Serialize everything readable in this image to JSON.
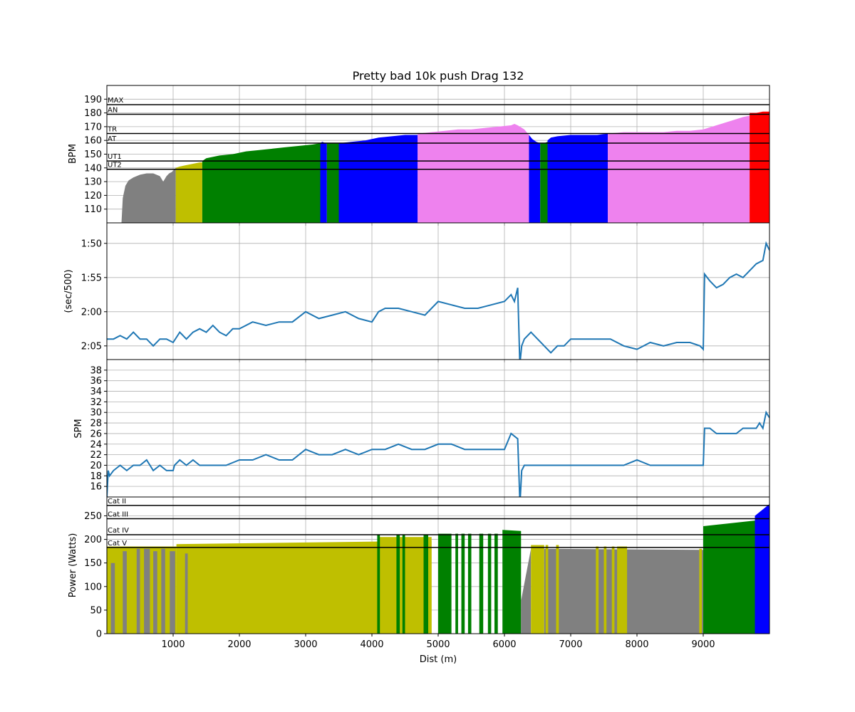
{
  "chart_data": [
    {
      "type": "area",
      "title": "Pretty bad 10k push Drag 132",
      "xlabel": "",
      "ylabel": "BPM",
      "xlim": [
        0,
        10000
      ],
      "ylim": [
        100,
        200
      ],
      "yticks": [
        110,
        120,
        130,
        140,
        150,
        160,
        170,
        180,
        190
      ],
      "grid": true,
      "zone_lines": [
        {
          "label": "MAX",
          "value": 186
        },
        {
          "label": "AN",
          "value": 179
        },
        {
          "label": "TR",
          "value": 165
        },
        {
          "label": "AT",
          "value": 158
        },
        {
          "label": "UT1",
          "value": 145
        },
        {
          "label": "UT2",
          "value": 139
        }
      ],
      "series": [
        {
          "color": "#808080",
          "x": [
            220,
            240,
            280,
            330,
            400,
            500,
            600,
            700,
            800,
            850,
            900,
            940,
            980,
            1020,
            1040
          ],
          "y": [
            100,
            118,
            127,
            131,
            133,
            135,
            136,
            136,
            134,
            130,
            134,
            136,
            137,
            139,
            140
          ]
        },
        {
          "color": "#bfbf00",
          "x": [
            1040,
            1100,
            1200,
            1300,
            1400,
            1440
          ],
          "y": [
            140,
            141,
            142,
            143,
            144,
            144
          ]
        },
        {
          "color": "#008000",
          "x": [
            1440,
            1500,
            1700,
            1900,
            2100,
            2300,
            2500,
            2700,
            2900,
            3100,
            3220
          ],
          "y": [
            145,
            147,
            149,
            150,
            152,
            153,
            154,
            155,
            156,
            157,
            158
          ]
        },
        {
          "color": "#0000ff",
          "x": [
            3220,
            3250,
            3300,
            3320
          ],
          "y": [
            158,
            159,
            158,
            158
          ]
        },
        {
          "color": "#008000",
          "x": [
            3320,
            3400,
            3500
          ],
          "y": [
            158,
            158,
            158
          ]
        },
        {
          "color": "#0000ff",
          "x": [
            3500,
            3700,
            3900,
            4100,
            4300,
            4500,
            4690
          ],
          "y": [
            158,
            159,
            160,
            162,
            163,
            164,
            164
          ]
        },
        {
          "color": "#ee82ee",
          "x": [
            4690,
            4900,
            5100,
            5300,
            5500,
            5700,
            5900,
            6100,
            6150,
            6200,
            6300,
            6370
          ],
          "y": [
            165,
            166,
            167,
            168,
            168,
            169,
            170,
            171,
            172,
            171,
            168,
            164
          ]
        },
        {
          "color": "#0000ff",
          "x": [
            6370,
            6420,
            6480,
            6540
          ],
          "y": [
            164,
            161,
            159,
            158
          ]
        },
        {
          "color": "#008000",
          "x": [
            6540,
            6600,
            6650
          ],
          "y": [
            158,
            158,
            159
          ]
        },
        {
          "color": "#0000ff",
          "x": [
            6650,
            6700,
            6800,
            7000,
            7200,
            7400,
            7560
          ],
          "y": [
            160,
            162,
            163,
            164,
            164,
            164,
            165
          ]
        },
        {
          "color": "#ee82ee",
          "x": [
            7560,
            7800,
            8000,
            8200,
            8400,
            8600,
            8800,
            9000,
            9200,
            9400,
            9600,
            9700
          ],
          "y": [
            165,
            166,
            166,
            166,
            166,
            167,
            167,
            168,
            171,
            174,
            177,
            178
          ]
        },
        {
          "color": "#ff0000",
          "x": [
            9700,
            9800,
            9900,
            10000
          ],
          "y": [
            180,
            180,
            181,
            181
          ]
        }
      ]
    },
    {
      "type": "line",
      "ylabel": "(sec/500)",
      "xlim": [
        0,
        10000
      ],
      "ylim": [
        127.0,
        107.0
      ],
      "yticks": [
        110,
        115,
        120,
        125
      ],
      "ytick_labels": [
        "1:50",
        "1:55",
        "2:00",
        "2:05"
      ],
      "grid": true,
      "series": [
        {
          "color": "#1f77b4",
          "x": [
            0,
            100,
            200,
            300,
            400,
            500,
            600,
            700,
            800,
            900,
            1000,
            1100,
            1200,
            1300,
            1400,
            1500,
            1600,
            1700,
            1800,
            1900,
            2000,
            2200,
            2400,
            2600,
            2800,
            3000,
            3200,
            3400,
            3600,
            3800,
            4000,
            4100,
            4200,
            4400,
            4600,
            4800,
            5000,
            5200,
            5400,
            5600,
            5800,
            6000,
            6100,
            6150,
            6200,
            6230,
            6240,
            6260,
            6300,
            6400,
            6500,
            6600,
            6700,
            6800,
            6900,
            7000,
            7200,
            7400,
            7600,
            7800,
            8000,
            8200,
            8400,
            8600,
            8800,
            8950,
            9000,
            9020,
            9100,
            9200,
            9300,
            9400,
            9500,
            9600,
            9700,
            9800,
            9900,
            9950,
            10000
          ],
          "y": [
            124,
            124,
            123.5,
            124,
            123,
            124,
            124,
            125,
            124,
            124,
            124.5,
            123,
            124,
            123,
            122.5,
            123,
            122,
            123,
            123.5,
            122.5,
            122.5,
            121.5,
            122,
            121.5,
            121.5,
            120,
            121,
            120.5,
            120,
            121,
            121.5,
            120,
            119.5,
            119.5,
            120,
            120.5,
            118.5,
            119,
            119.5,
            119.5,
            119,
            118.5,
            117.5,
            118.5,
            116.5,
            127,
            127,
            125,
            124,
            123,
            124,
            125,
            126,
            125,
            125,
            124,
            124,
            124,
            124,
            125,
            125.5,
            124.5,
            125,
            124.5,
            124.5,
            125,
            125.5,
            114.5,
            115.5,
            116.5,
            116,
            115,
            114.5,
            115,
            114,
            113,
            112.5,
            110,
            111
          ]
        }
      ]
    },
    {
      "type": "line",
      "xlabel": "",
      "ylabel": "SPM",
      "xlim": [
        0,
        10000
      ],
      "ylim": [
        14,
        40
      ],
      "yticks": [
        16,
        18,
        20,
        22,
        24,
        26,
        28,
        30,
        32,
        34,
        36,
        38
      ],
      "grid": true,
      "series": [
        {
          "color": "#1f77b4",
          "x": [
            0,
            20,
            40,
            100,
            200,
            300,
            400,
            500,
            600,
            700,
            800,
            900,
            1000,
            1020,
            1100,
            1200,
            1300,
            1400,
            1600,
            1800,
            2000,
            2200,
            2400,
            2600,
            2800,
            3000,
            3200,
            3400,
            3600,
            3800,
            4000,
            4200,
            4400,
            4600,
            4800,
            5000,
            5200,
            5400,
            5600,
            5800,
            6000,
            6100,
            6200,
            6230,
            6240,
            6260,
            6300,
            6500,
            6800,
            7000,
            7200,
            7400,
            7600,
            7800,
            8000,
            8200,
            8400,
            8600,
            8800,
            9000,
            9020,
            9100,
            9200,
            9300,
            9400,
            9500,
            9600,
            9700,
            9800,
            9850,
            9900,
            9950,
            10000
          ],
          "y": [
            14,
            19,
            18,
            19,
            20,
            19,
            20,
            20,
            21,
            19,
            20,
            19,
            19,
            20,
            21,
            20,
            21,
            20,
            20,
            20,
            21,
            21,
            22,
            21,
            21,
            23,
            22,
            22,
            23,
            22,
            23,
            23,
            24,
            23,
            23,
            24,
            24,
            23,
            23,
            23,
            23,
            26,
            25,
            14,
            14,
            19,
            20,
            20,
            20,
            20,
            20,
            20,
            20,
            20,
            21,
            20,
            20,
            20,
            20,
            20,
            27,
            27,
            26,
            26,
            26,
            26,
            27,
            27,
            27,
            28,
            27,
            30,
            29
          ]
        }
      ]
    },
    {
      "type": "bar",
      "xlabel": "Dist (m)",
      "ylabel": "Power (Watts)",
      "xlim": [
        0,
        10000
      ],
      "ylim": [
        0,
        290
      ],
      "yticks": [
        0,
        50,
        100,
        150,
        200,
        250
      ],
      "xticks": [
        1000,
        2000,
        3000,
        4000,
        5000,
        6000,
        7000,
        8000,
        9000
      ],
      "grid": true,
      "zone_lines": [
        {
          "label": "Cat II",
          "value": 272
        },
        {
          "label": "Cat III",
          "value": 244
        },
        {
          "label": "Cat IV",
          "value": 210
        },
        {
          "label": "Cat V",
          "value": 183
        }
      ],
      "series": [
        {
          "color": "#bfbf00",
          "x": [
            0,
            1050
          ],
          "y": [
            185,
            185
          ]
        },
        {
          "color": "#808080",
          "x": [
            60,
            120
          ],
          "y": [
            150,
            150
          ]
        },
        {
          "color": "#808080",
          "x": [
            240,
            300
          ],
          "y": [
            175,
            175
          ]
        },
        {
          "color": "#808080",
          "x": [
            450,
            500
          ],
          "y": [
            180,
            180
          ]
        },
        {
          "color": "#808080",
          "x": [
            560,
            650
          ],
          "y": [
            180,
            180
          ]
        },
        {
          "color": "#808080",
          "x": [
            700,
            760
          ],
          "y": [
            175,
            175
          ]
        },
        {
          "color": "#808080",
          "x": [
            820,
            880
          ],
          "y": [
            180,
            180
          ]
        },
        {
          "color": "#808080",
          "x": [
            950,
            1030
          ],
          "y": [
            175,
            175
          ]
        },
        {
          "color": "#bfbf00",
          "x": [
            1050,
            4900
          ],
          "y": [
            190,
            197
          ]
        },
        {
          "color": "#808080",
          "x": [
            1180,
            1220
          ],
          "y": [
            170,
            170
          ]
        },
        {
          "color": "#bfbf00",
          "x": [
            4100,
            4900
          ],
          "y": [
            205,
            205
          ]
        },
        {
          "color": "#008000",
          "x": [
            4080,
            4120
          ],
          "y": [
            210,
            210
          ]
        },
        {
          "color": "#008000",
          "x": [
            4370,
            4420
          ],
          "y": [
            210,
            210
          ]
        },
        {
          "color": "#008000",
          "x": [
            4460,
            4500
          ],
          "y": [
            210,
            210
          ]
        },
        {
          "color": "#008000",
          "x": [
            4780,
            4850
          ],
          "y": [
            210,
            210
          ]
        },
        {
          "color": "#008000",
          "x": [
            5000,
            5200
          ],
          "y": [
            212,
            212
          ]
        },
        {
          "color": "#008000",
          "x": [
            5260,
            5300
          ],
          "y": [
            212,
            212
          ]
        },
        {
          "color": "#008000",
          "x": [
            5350,
            5400
          ],
          "y": [
            212,
            212
          ]
        },
        {
          "color": "#008000",
          "x": [
            5450,
            5500
          ],
          "y": [
            212,
            212
          ]
        },
        {
          "color": "#008000",
          "x": [
            5620,
            5680
          ],
          "y": [
            212,
            212
          ]
        },
        {
          "color": "#008000",
          "x": [
            5750,
            5800
          ],
          "y": [
            212,
            212
          ]
        },
        {
          "color": "#008000",
          "x": [
            5850,
            5900
          ],
          "y": [
            212,
            212
          ]
        },
        {
          "color": "#008000",
          "x": [
            5970,
            6250
          ],
          "y": [
            220,
            218
          ]
        },
        {
          "color": "#808080",
          "x": [
            6250,
            6400
          ],
          "y": [
            70,
            180
          ]
        },
        {
          "color": "#bfbf00",
          "x": [
            6400,
            6600
          ],
          "y": [
            188,
            188
          ]
        },
        {
          "color": "#808080",
          "x": [
            6600,
            9000
          ],
          "y": [
            180,
            178
          ]
        },
        {
          "color": "#bfbf00",
          "x": [
            6620,
            6660
          ],
          "y": [
            188,
            188
          ]
        },
        {
          "color": "#bfbf00",
          "x": [
            6780,
            6820
          ],
          "y": [
            188,
            188
          ]
        },
        {
          "color": "#bfbf00",
          "x": [
            7380,
            7420
          ],
          "y": [
            185,
            185
          ]
        },
        {
          "color": "#bfbf00",
          "x": [
            7500,
            7540
          ],
          "y": [
            185,
            185
          ]
        },
        {
          "color": "#bfbf00",
          "x": [
            7620,
            7660
          ],
          "y": [
            185,
            185
          ]
        },
        {
          "color": "#bfbf00",
          "x": [
            7700,
            7850
          ],
          "y": [
            185,
            185
          ]
        },
        {
          "color": "#bfbf00",
          "x": [
            8940,
            8980
          ],
          "y": [
            180,
            180
          ]
        },
        {
          "color": "#008000",
          "x": [
            9000,
            9780
          ],
          "y": [
            228,
            240
          ]
        },
        {
          "color": "#0000ff",
          "x": [
            9780,
            10000
          ],
          "y": [
            250,
            275
          ]
        }
      ]
    }
  ]
}
